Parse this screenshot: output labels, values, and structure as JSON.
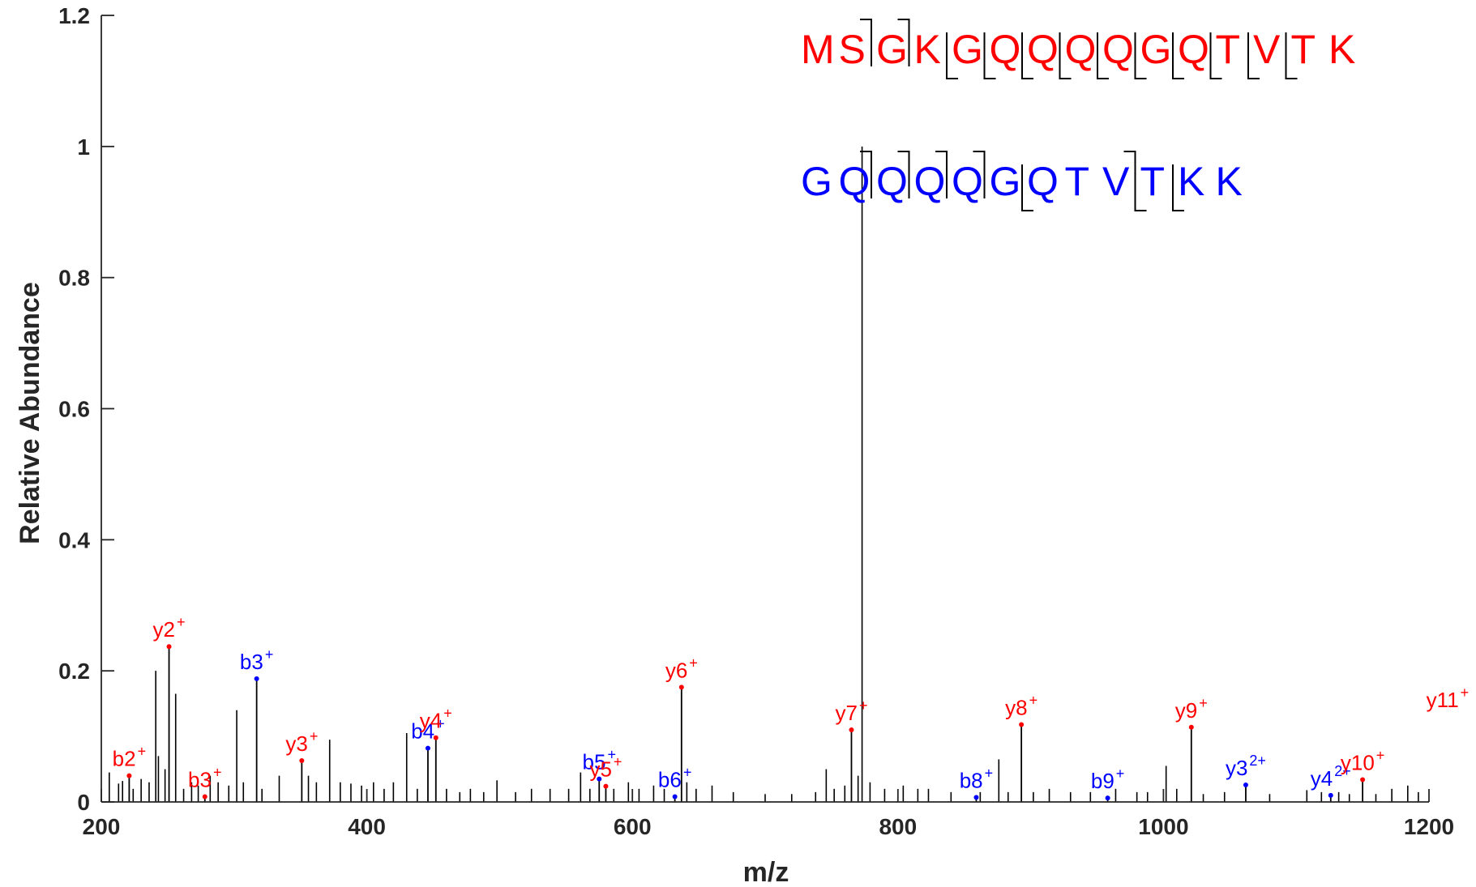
{
  "chart_data": {
    "type": "bar",
    "xlabel": "m/z",
    "ylabel": "Relative Abundance",
    "xlim": [
      200,
      1200
    ],
    "ylim": [
      0,
      1.2
    ],
    "x_ticks": [
      200,
      400,
      600,
      800,
      1000,
      1200
    ],
    "y_ticks": [
      0,
      0.2,
      0.4,
      0.6,
      0.8,
      1,
      1.2
    ],
    "y_tick_labels": [
      "0",
      "0.2",
      "0.4",
      "0.6",
      "0.8",
      "1",
      "1.2"
    ],
    "colors": {
      "peptide_a": "#ff0000",
      "peptide_b": "#0000ff",
      "peaks": "#000000",
      "axis": "#262626"
    },
    "precursor_peak": {
      "mz": 773,
      "intensity": 1.0
    },
    "annotated_peaks": [
      {
        "label": "b2",
        "charge": "+",
        "series": "b",
        "mz": 221,
        "intensity": 0.04,
        "color": "#ff0000"
      },
      {
        "label": "y2",
        "charge": "+",
        "series": "y",
        "mz": 251,
        "intensity": 0.237,
        "color": "#ff0000"
      },
      {
        "label": "b3",
        "charge": "+",
        "series": "b",
        "mz": 278,
        "intensity": 0.008,
        "color": "#ff0000"
      },
      {
        "label": "b3",
        "charge": "+",
        "series": "b",
        "mz": 317,
        "intensity": 0.188,
        "color": "#0000ff"
      },
      {
        "label": "y3",
        "charge": "+",
        "series": "y",
        "mz": 351,
        "intensity": 0.063,
        "color": "#ff0000"
      },
      {
        "label": "b4",
        "charge": "+",
        "series": "b",
        "mz": 446,
        "intensity": 0.082,
        "color": "#0000ff"
      },
      {
        "label": "y4",
        "charge": "+",
        "series": "y",
        "mz": 452,
        "intensity": 0.098,
        "color": "#ff0000"
      },
      {
        "label": "b5",
        "charge": "+",
        "series": "b",
        "mz": 575,
        "intensity": 0.035,
        "color": "#0000ff"
      },
      {
        "label": "y5",
        "charge": "+",
        "series": "y",
        "mz": 580,
        "intensity": 0.024,
        "color": "#ff0000"
      },
      {
        "label": "b6",
        "charge": "+",
        "series": "b",
        "mz": 632,
        "intensity": 0.008,
        "color": "#0000ff"
      },
      {
        "label": "y6",
        "charge": "+",
        "series": "y",
        "mz": 637,
        "intensity": 0.175,
        "color": "#ff0000"
      },
      {
        "label": "y7",
        "charge": "+",
        "series": "y",
        "mz": 765,
        "intensity": 0.11,
        "color": "#ff0000"
      },
      {
        "label": "b8",
        "charge": "+",
        "series": "b",
        "mz": 859,
        "intensity": 0.007,
        "color": "#0000ff"
      },
      {
        "label": "y8",
        "charge": "+",
        "series": "y",
        "mz": 893,
        "intensity": 0.118,
        "color": "#ff0000"
      },
      {
        "label": "b9",
        "charge": "+",
        "series": "b",
        "mz": 958,
        "intensity": 0.006,
        "color": "#0000ff"
      },
      {
        "label": "y9",
        "charge": "+",
        "series": "y",
        "mz": 1021,
        "intensity": 0.114,
        "color": "#ff0000"
      },
      {
        "label": "y3",
        "charge": "2+",
        "series": "y",
        "mz": 1062,
        "intensity": 0.026,
        "color": "#0000ff"
      },
      {
        "label": "y4",
        "charge": "2+",
        "series": "y",
        "mz": 1126,
        "intensity": 0.01,
        "color": "#0000ff"
      },
      {
        "label": "y10",
        "charge": "+",
        "series": "y",
        "mz": 1150,
        "intensity": 0.034,
        "color": "#ff0000"
      },
      {
        "label": "y11",
        "charge": "+",
        "series": "y",
        "mz": 1214,
        "intensity": 0.13,
        "color": "#ff0000"
      }
    ],
    "unannotated_peaks": [
      [
        206,
        0.045
      ],
      [
        213,
        0.028
      ],
      [
        216,
        0.032
      ],
      [
        224,
        0.02
      ],
      [
        230,
        0.035
      ],
      [
        236,
        0.03
      ],
      [
        241,
        0.2
      ],
      [
        243,
        0.07
      ],
      [
        248,
        0.05
      ],
      [
        256,
        0.165
      ],
      [
        262,
        0.02
      ],
      [
        268,
        0.03
      ],
      [
        273,
        0.025
      ],
      [
        282,
        0.04
      ],
      [
        288,
        0.03
      ],
      [
        296,
        0.025
      ],
      [
        302,
        0.14
      ],
      [
        307,
        0.03
      ],
      [
        321,
        0.02
      ],
      [
        334,
        0.04
      ],
      [
        356,
        0.04
      ],
      [
        362,
        0.03
      ],
      [
        372,
        0.095
      ],
      [
        380,
        0.03
      ],
      [
        388,
        0.028
      ],
      [
        396,
        0.025
      ],
      [
        405,
        0.03
      ],
      [
        413,
        0.02
      ],
      [
        420,
        0.03
      ],
      [
        430,
        0.105
      ],
      [
        438,
        0.02
      ],
      [
        460,
        0.02
      ],
      [
        470,
        0.015
      ],
      [
        478,
        0.02
      ],
      [
        488,
        0.015
      ],
      [
        498,
        0.033
      ],
      [
        512,
        0.015
      ],
      [
        524,
        0.02
      ],
      [
        538,
        0.02
      ],
      [
        552,
        0.02
      ],
      [
        561,
        0.045
      ],
      [
        568,
        0.02
      ],
      [
        586,
        0.02
      ],
      [
        597,
        0.03
      ],
      [
        605,
        0.02
      ],
      [
        616,
        0.025
      ],
      [
        624,
        0.02
      ],
      [
        641,
        0.03
      ],
      [
        648,
        0.02
      ],
      [
        660,
        0.025
      ],
      [
        676,
        0.015
      ],
      [
        700,
        0.012
      ],
      [
        720,
        0.012
      ],
      [
        738,
        0.015
      ],
      [
        746,
        0.05
      ],
      [
        752,
        0.02
      ],
      [
        760,
        0.025
      ],
      [
        770,
        0.04
      ],
      [
        779,
        0.03
      ],
      [
        790,
        0.02
      ],
      [
        804,
        0.025
      ],
      [
        815,
        0.02
      ],
      [
        823,
        0.02
      ],
      [
        840,
        0.015
      ],
      [
        862,
        0.015
      ],
      [
        876,
        0.065
      ],
      [
        883,
        0.015
      ],
      [
        902,
        0.015
      ],
      [
        914,
        0.02
      ],
      [
        930,
        0.015
      ],
      [
        945,
        0.015
      ],
      [
        964,
        0.02
      ],
      [
        980,
        0.015
      ],
      [
        988,
        0.015
      ],
      [
        1002,
        0.055
      ],
      [
        1010,
        0.02
      ],
      [
        1030,
        0.012
      ],
      [
        1046,
        0.015
      ],
      [
        1080,
        0.012
      ],
      [
        1108,
        0.018
      ],
      [
        1119,
        0.015
      ],
      [
        1132,
        0.015
      ],
      [
        1140,
        0.012
      ],
      [
        1160,
        0.012
      ],
      [
        1172,
        0.02
      ],
      [
        1184,
        0.025
      ],
      [
        1192,
        0.015
      ]
    ],
    "peptides": [
      {
        "name": "peptide-a",
        "color": "#ff0000",
        "letters": [
          "M",
          "S",
          "G",
          "K",
          "G",
          "Q",
          "Q",
          "Q",
          "Q",
          "G",
          "Q",
          "T",
          "V",
          "T",
          "K"
        ],
        "b_breaks": [
          2,
          3
        ],
        "y_breaks": [
          4,
          5,
          6,
          7,
          8,
          9,
          10,
          11,
          12,
          13
        ]
      },
      {
        "name": "peptide-b",
        "color": "#0000ff",
        "letters": [
          "G",
          "Q",
          "Q",
          "Q",
          "Q",
          "G",
          "Q",
          "T",
          "V",
          "T",
          "K",
          "K"
        ],
        "b_breaks": [
          2,
          3,
          4,
          5,
          9
        ],
        "y_breaks": [
          6,
          9,
          10
        ]
      }
    ]
  }
}
